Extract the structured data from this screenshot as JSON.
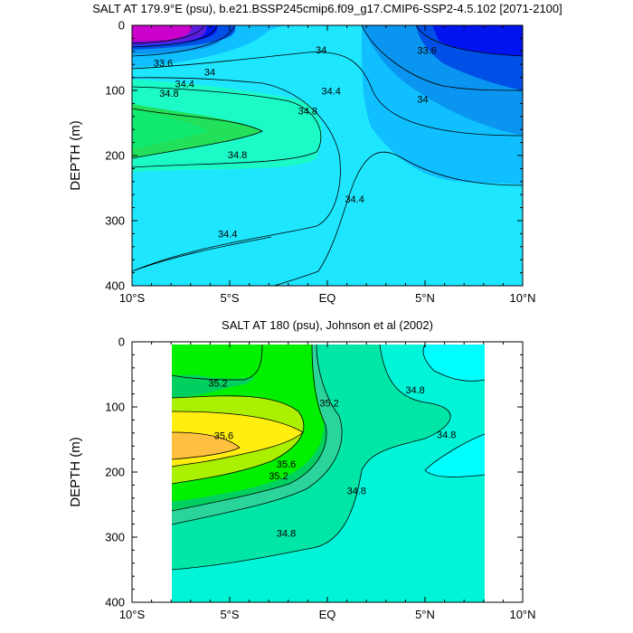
{
  "chart_data": [
    {
      "type": "contour",
      "title": "SALT AT 179.9°E (psu), b.e21.BSSP245cmip6.f09_g17.CMIP6-SSP2-4.5.102 [2071-2100]",
      "xlabel": "",
      "ylabel": "DEPTH (m)",
      "xlim": [
        -10,
        10
      ],
      "ylim": [
        400,
        0
      ],
      "x_ticks": [
        "10°S",
        "5°S",
        "EQ",
        "5°N",
        "10°N"
      ],
      "y_ticks": [
        "0",
        "100",
        "200",
        "300",
        "400"
      ],
      "contour_interval": 0.2,
      "contour_labels": [
        {
          "text": "33.6",
          "x": -8.9,
          "y": 63
        },
        {
          "text": "34",
          "x": -6.3,
          "y": 77
        },
        {
          "text": "34.4",
          "x": -7.8,
          "y": 95
        },
        {
          "text": "34.8",
          "x": -8.6,
          "y": 110
        },
        {
          "text": "34",
          "x": -0.6,
          "y": 43
        },
        {
          "text": "34.4",
          "x": -0.3,
          "y": 106
        },
        {
          "text": "34.8",
          "x": -1.5,
          "y": 137
        },
        {
          "text": "34.8",
          "x": -5.1,
          "y": 204
        },
        {
          "text": "34.4",
          "x": 0.9,
          "y": 272
        },
        {
          "text": "34.4",
          "x": -5.6,
          "y": 326
        },
        {
          "text": "33.6",
          "x": 4.6,
          "y": 44
        },
        {
          "text": "34",
          "x": 4.6,
          "y": 119
        }
      ]
    },
    {
      "type": "contour",
      "title": "SALT AT 180 (psu), Johnson et al (2002)",
      "xlabel": "",
      "ylabel": "DEPTH (m)",
      "xlim": [
        -10,
        10
      ],
      "ylim": [
        400,
        0
      ],
      "data_xlim": [
        -8,
        8
      ],
      "x_ticks": [
        "10°S",
        "5°S",
        "EQ",
        "5°N",
        "10°N"
      ],
      "y_ticks": [
        "0",
        "100",
        "200",
        "300",
        "400"
      ],
      "contour_interval": 0.2,
      "contour_labels": [
        {
          "text": "35.2",
          "x": -6.1,
          "y": 69
        },
        {
          "text": "35.6",
          "x": -5.8,
          "y": 149
        },
        {
          "text": "35.6",
          "x": -2.6,
          "y": 193
        },
        {
          "text": "35.2",
          "x": -3.0,
          "y": 211
        },
        {
          "text": "35.2",
          "x": -0.4,
          "y": 99
        },
        {
          "text": "34.8",
          "x": 1.0,
          "y": 234
        },
        {
          "text": "34.8",
          "x": -2.6,
          "y": 299
        },
        {
          "text": "34.8",
          "x": 4.0,
          "y": 79
        },
        {
          "text": "34.8",
          "x": 5.6,
          "y": 148
        }
      ]
    }
  ]
}
